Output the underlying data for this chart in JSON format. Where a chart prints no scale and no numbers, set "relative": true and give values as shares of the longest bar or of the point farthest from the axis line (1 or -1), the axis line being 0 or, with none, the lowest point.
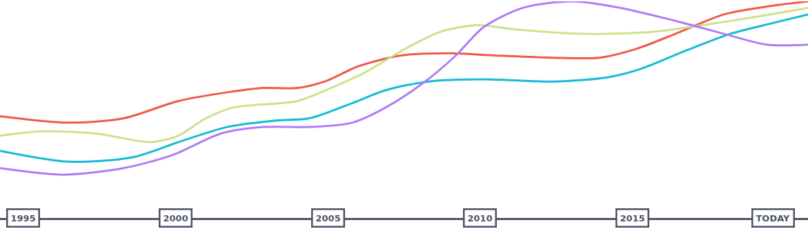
{
  "chart_data": {
    "type": "line",
    "relative": true,
    "xlim": [
      1994.25,
      2020.75
    ],
    "xticks": [
      1995,
      2000,
      2005,
      2010,
      2015,
      {
        "value": 2019.6,
        "label": "TODAY"
      }
    ],
    "marker": "none",
    "line_style": "solid",
    "series": [
      {
        "color": "#f0594a",
        "x": [
          1994.25,
          1996.5,
          1998.3,
          2000.1,
          2001.7,
          2002.9,
          2004.0,
          2004.9,
          2006.0,
          2007.4,
          2009.0,
          2010.5,
          2012.4,
          2013.9,
          2015.1,
          2016.4,
          2018.0,
          2019.6,
          2020.75
        ],
        "values": [
          0.47,
          0.44,
          0.46,
          0.54,
          0.58,
          0.6,
          0.6,
          0.63,
          0.7,
          0.75,
          0.76,
          0.75,
          0.74,
          0.74,
          0.78,
          0.85,
          0.94,
          0.98,
          1.0
        ]
      },
      {
        "color": "#cfe08a",
        "x": [
          1994.25,
          1995.6,
          1997.4,
          1999.2,
          2000.1,
          2001.0,
          2001.9,
          2004.0,
          2005.1,
          2006.2,
          2007.4,
          2008.7,
          2009.9,
          2011.2,
          2013.5,
          2015.7,
          2017.3,
          2019.1,
          2020.75
        ],
        "values": [
          0.38,
          0.4,
          0.39,
          0.35,
          0.38,
          0.46,
          0.51,
          0.54,
          0.6,
          0.67,
          0.77,
          0.86,
          0.89,
          0.87,
          0.85,
          0.86,
          0.89,
          0.93,
          0.97
        ]
      },
      {
        "color": "#12bcd4",
        "x": [
          1994.25,
          1996.5,
          1998.6,
          2000.1,
          2001.7,
          2003.3,
          2004.4,
          2005.8,
          2006.9,
          2008.3,
          2010.1,
          2012.4,
          2014.2,
          2015.3,
          2016.7,
          2018.2,
          2019.6,
          2020.75
        ],
        "values": [
          0.31,
          0.26,
          0.28,
          0.35,
          0.42,
          0.45,
          0.46,
          0.53,
          0.59,
          0.63,
          0.64,
          0.63,
          0.65,
          0.69,
          0.77,
          0.85,
          0.9,
          0.94
        ]
      },
      {
        "color": "#b07cf5",
        "x": [
          1994.25,
          1996.3,
          1998.3,
          1999.9,
          2001.5,
          2002.9,
          2004.4,
          2005.8,
          2006.9,
          2008.1,
          2009.2,
          2010.1,
          2011.4,
          2013.0,
          2014.6,
          2016.4,
          2018.0,
          2019.4,
          2020.75
        ],
        "values": [
          0.23,
          0.2,
          0.23,
          0.29,
          0.39,
          0.42,
          0.42,
          0.44,
          0.51,
          0.62,
          0.75,
          0.88,
          0.97,
          1.0,
          0.97,
          0.91,
          0.85,
          0.8,
          0.8
        ]
      }
    ]
  }
}
